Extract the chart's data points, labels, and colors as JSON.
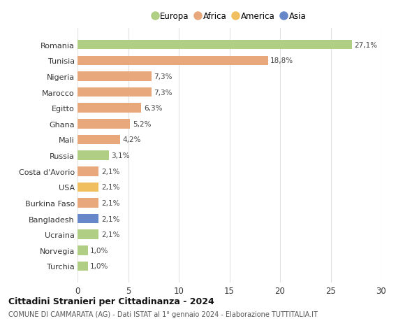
{
  "countries": [
    "Romania",
    "Tunisia",
    "Nigeria",
    "Marocco",
    "Egitto",
    "Ghana",
    "Mali",
    "Russia",
    "Costa d'Avorio",
    "USA",
    "Burkina Faso",
    "Bangladesh",
    "Ucraina",
    "Norvegia",
    "Turchia"
  ],
  "values": [
    27.1,
    18.8,
    7.3,
    7.3,
    6.3,
    5.2,
    4.2,
    3.1,
    2.1,
    2.1,
    2.1,
    2.1,
    2.1,
    1.0,
    1.0
  ],
  "labels": [
    "27,1%",
    "18,8%",
    "7,3%",
    "7,3%",
    "6,3%",
    "5,2%",
    "4,2%",
    "3,1%",
    "2,1%",
    "2,1%",
    "2,1%",
    "2,1%",
    "2,1%",
    "1,0%",
    "1,0%"
  ],
  "colors": [
    "#b0ce84",
    "#e8a87c",
    "#e8a87c",
    "#e8a87c",
    "#e8a87c",
    "#e8a87c",
    "#e8a87c",
    "#b0ce84",
    "#e8a87c",
    "#f0c060",
    "#e8a87c",
    "#6688c8",
    "#b0ce84",
    "#b0ce84",
    "#b0ce84"
  ],
  "legend": [
    {
      "label": "Europa",
      "color": "#b0ce84"
    },
    {
      "label": "Africa",
      "color": "#e8a87c"
    },
    {
      "label": "America",
      "color": "#f0c060"
    },
    {
      "label": "Asia",
      "color": "#6688c8"
    }
  ],
  "xlim": [
    0,
    30
  ],
  "xticks": [
    0,
    5,
    10,
    15,
    20,
    25,
    30
  ],
  "title": "Cittadini Stranieri per Cittadinanza - 2024",
  "subtitle": "COMUNE DI CAMMARATA (AG) - Dati ISTAT al 1° gennaio 2024 - Elaborazione TUTTITALIA.IT",
  "background_color": "#ffffff",
  "grid_color": "#e0e0e0",
  "bar_height": 0.6
}
